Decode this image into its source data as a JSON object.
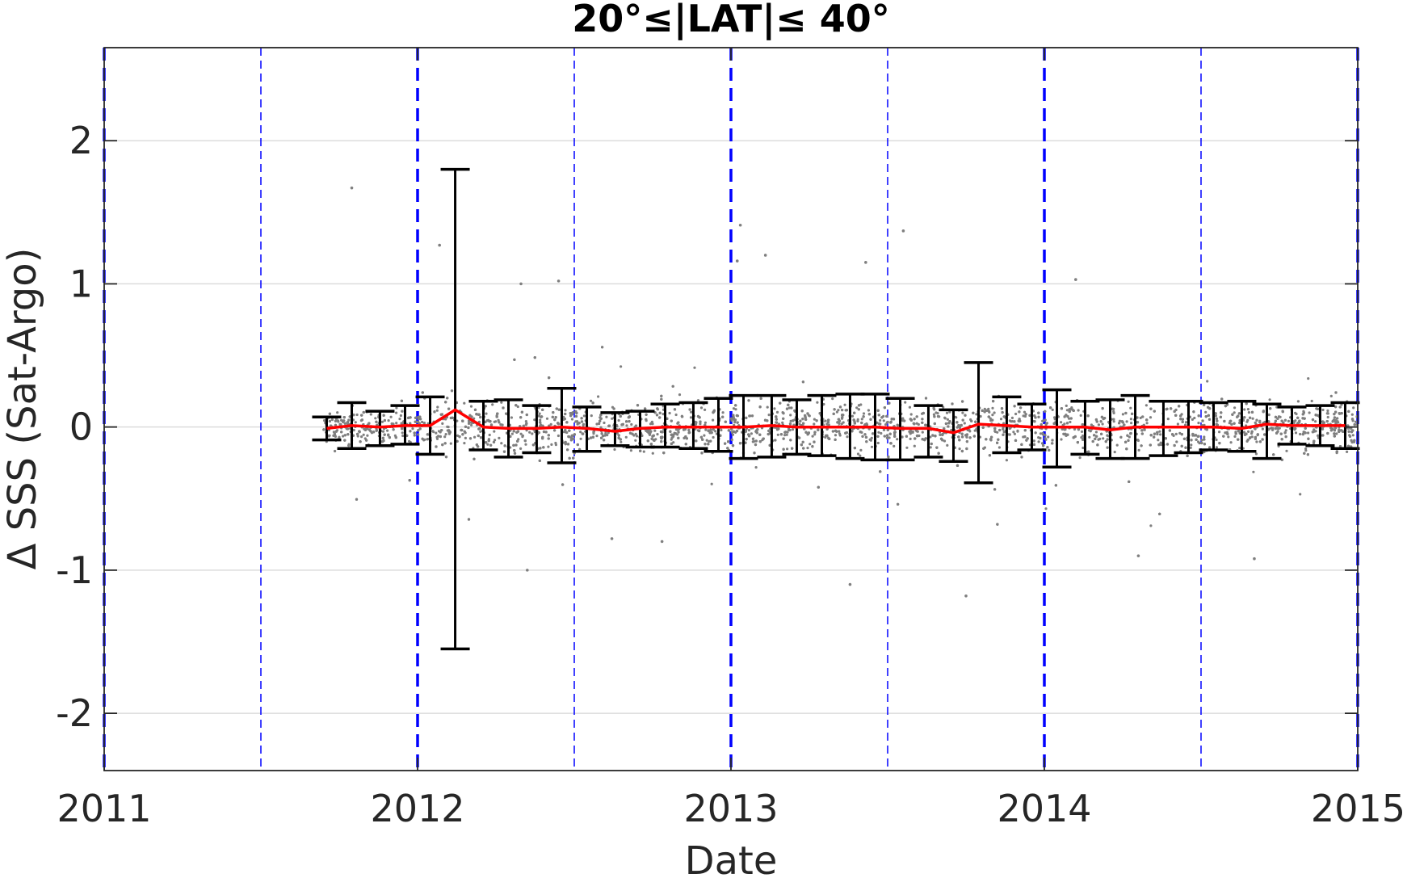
{
  "chart_data": {
    "type": "scatter",
    "title": "20°≤|LAT|≤ 40°",
    "xlabel": "Date",
    "ylabel": "Δ SSS (Sat-Argo)",
    "xlim": [
      2011,
      2015
    ],
    "ylim": [
      -2.4,
      2.65
    ],
    "x_ticks": [
      {
        "value": 2011,
        "label": "2011"
      },
      {
        "value": 2012,
        "label": "2012"
      },
      {
        "value": 2013,
        "label": "2013"
      },
      {
        "value": 2014,
        "label": "2014"
      },
      {
        "value": 2015,
        "label": "2015"
      }
    ],
    "y_ticks": [
      {
        "value": 2,
        "label": "2"
      },
      {
        "value": 1,
        "label": "1"
      },
      {
        "value": 0,
        "label": "0"
      },
      {
        "value": -1,
        "label": "-1"
      },
      {
        "value": -2,
        "label": "-2"
      }
    ],
    "grid": "horizontal",
    "legend": "none",
    "year_lines": [
      2011,
      2012,
      2013,
      2014,
      2015
    ],
    "half_year_lines": [
      2011.5,
      2012.5,
      2013.5,
      2014.5
    ],
    "colors": {
      "points": "#7f7f7f",
      "mean_line": "#ff0000",
      "error_bars": "#000000",
      "year_lines": "#0000ff",
      "grid": "#dcdcdc"
    },
    "scatter_cloud": {
      "x_start": 2011.7,
      "x_end": 2015.0,
      "typical_spread": 0.15,
      "approx_points": 5200,
      "outliers": [
        {
          "x": 2011.79,
          "y": 1.67
        },
        {
          "x": 2012.07,
          "y": 1.27
        },
        {
          "x": 2012.33,
          "y": 1.0
        },
        {
          "x": 2012.45,
          "y": 1.02
        },
        {
          "x": 2013.02,
          "y": 1.16
        },
        {
          "x": 2013.03,
          "y": 1.41
        },
        {
          "x": 2013.11,
          "y": 1.2
        },
        {
          "x": 2013.43,
          "y": 1.15
        },
        {
          "x": 2013.55,
          "y": 1.37
        },
        {
          "x": 2014.1,
          "y": 1.03
        },
        {
          "x": 2012.35,
          "y": -1.0
        },
        {
          "x": 2012.62,
          "y": -0.78
        },
        {
          "x": 2012.78,
          "y": -0.8
        },
        {
          "x": 2013.38,
          "y": -1.1
        },
        {
          "x": 2013.75,
          "y": -1.18
        },
        {
          "x": 2014.3,
          "y": -0.9
        },
        {
          "x": 2014.67,
          "y": -0.92
        }
      ]
    },
    "series": [
      {
        "kind": "mean_with_error_bars",
        "x": [
          2011.71,
          2011.79,
          2011.88,
          2011.96,
          2012.04,
          2012.12,
          2012.21,
          2012.29,
          2012.38,
          2012.46,
          2012.54,
          2012.63,
          2012.71,
          2012.79,
          2012.88,
          2012.96,
          2013.04,
          2013.13,
          2013.21,
          2013.29,
          2013.38,
          2013.46,
          2013.54,
          2013.63,
          2013.71,
          2013.79,
          2013.88,
          2013.96,
          2014.04,
          2014.13,
          2014.21,
          2014.29,
          2014.38,
          2014.46,
          2014.54,
          2014.63,
          2014.71,
          2014.79,
          2014.88,
          2014.96
        ],
        "mean": [
          -0.01,
          0.01,
          0.0,
          0.01,
          0.01,
          0.12,
          0.0,
          -0.01,
          -0.01,
          0.0,
          -0.01,
          -0.03,
          -0.01,
          0.0,
          0.0,
          0.0,
          0.0,
          0.01,
          0.0,
          0.0,
          0.0,
          0.0,
          -0.01,
          -0.01,
          -0.04,
          0.02,
          0.01,
          0.0,
          0.0,
          0.0,
          -0.02,
          0.0,
          0.0,
          0.0,
          0.0,
          -0.01,
          0.02,
          0.01,
          0.01,
          0.01
        ],
        "upper": [
          0.07,
          0.17,
          0.11,
          0.15,
          0.21,
          1.8,
          0.18,
          0.19,
          0.15,
          0.27,
          0.14,
          0.1,
          0.11,
          0.16,
          0.17,
          0.2,
          0.22,
          0.22,
          0.19,
          0.22,
          0.23,
          0.23,
          0.2,
          0.15,
          0.12,
          0.45,
          0.21,
          0.16,
          0.26,
          0.18,
          0.19,
          0.22,
          0.18,
          0.18,
          0.17,
          0.18,
          0.16,
          0.14,
          0.15,
          0.17
        ],
        "lower": [
          -0.09,
          -0.15,
          -0.13,
          -0.12,
          -0.19,
          -1.55,
          -0.16,
          -0.21,
          -0.18,
          -0.25,
          -0.17,
          -0.13,
          -0.14,
          -0.14,
          -0.15,
          -0.17,
          -0.22,
          -0.21,
          -0.19,
          -0.2,
          -0.22,
          -0.23,
          -0.23,
          -0.21,
          -0.24,
          -0.39,
          -0.18,
          -0.16,
          -0.28,
          -0.19,
          -0.22,
          -0.22,
          -0.2,
          -0.18,
          -0.16,
          -0.17,
          -0.22,
          -0.12,
          -0.13,
          -0.15
        ]
      }
    ]
  }
}
